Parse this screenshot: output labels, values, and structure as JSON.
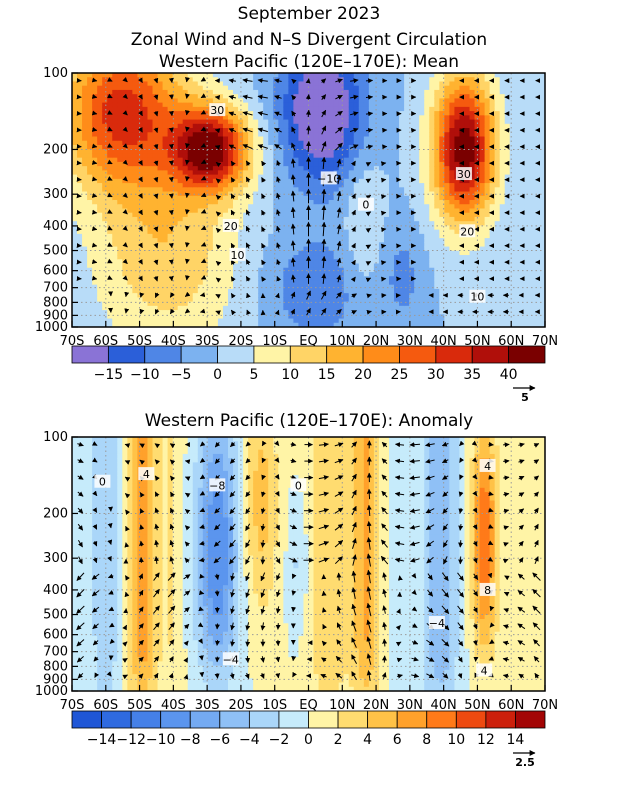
{
  "figure": {
    "title_line1": "September 2023",
    "title_line2": "Zonal Wind and N–S Divergent Circulation",
    "title_line3": "Western Pacific (120E–170E): Mean"
  },
  "chart_data": [
    {
      "type": "heatmap",
      "panel": "mean",
      "title": "Western Pacific (120E–170E): Mean",
      "x_tick_labels": [
        "70S",
        "60S",
        "50S",
        "40S",
        "30S",
        "20S",
        "10S",
        "EQ",
        "10N",
        "20N",
        "30N",
        "40N",
        "50N",
        "60N",
        "70N"
      ],
      "x_values": [
        -70,
        -60,
        -50,
        -40,
        -30,
        -20,
        -10,
        0,
        10,
        20,
        30,
        40,
        50,
        60,
        70
      ],
      "xlim": [
        -70,
        70
      ],
      "y_tick_labels": [
        "100",
        "200",
        "300",
        "400",
        "500",
        "600",
        "700",
        "800",
        "900",
        "1000"
      ],
      "y_values": [
        100,
        200,
        300,
        400,
        500,
        600,
        700,
        800,
        900,
        1000
      ],
      "ylim": [
        1000,
        100
      ],
      "y_scale": "log",
      "grid": true,
      "colorbar": {
        "labels": [
          "−15",
          "−10",
          "−5",
          "0",
          "5",
          "10",
          "15",
          "20",
          "25",
          "30",
          "35",
          "40"
        ],
        "level_values": [
          -15,
          -10,
          -5,
          0,
          5,
          10,
          15,
          20,
          25,
          30,
          35,
          40
        ],
        "colors": [
          "#8a73d6",
          "#2b5fd9",
          "#4f86e6",
          "#7cb2f0",
          "#b8dcf8",
          "#fff4a6",
          "#ffd466",
          "#ffb330",
          "#ff8c19",
          "#f55a0f",
          "#d92a0c",
          "#b00f0a",
          "#7a0000"
        ],
        "vector_reference": "5"
      },
      "contour_labels": [
        {
          "text": "30",
          "lat": -27,
          "p": 140
        },
        {
          "text": "20",
          "lat": -23,
          "p": 400
        },
        {
          "text": "10",
          "lat": -21,
          "p": 520
        },
        {
          "text": "−10",
          "lat": 6,
          "p": 260
        },
        {
          "text": "0",
          "lat": 17,
          "p": 330
        },
        {
          "text": "30",
          "lat": 46,
          "p": 250
        },
        {
          "text": "20",
          "lat": 47,
          "p": 420
        },
        {
          "text": "10",
          "lat": 50,
          "p": 760
        }
      ]
    },
    {
      "type": "heatmap",
      "panel": "anomaly",
      "title": "Western Pacific (120E–170E): Anomaly",
      "x_tick_labels": [
        "70S",
        "60S",
        "50S",
        "40S",
        "30S",
        "20S",
        "10S",
        "EQ",
        "10N",
        "20N",
        "30N",
        "40N",
        "50N",
        "60N",
        "70N"
      ],
      "x_values": [
        -70,
        -60,
        -50,
        -40,
        -30,
        -20,
        -10,
        0,
        10,
        20,
        30,
        40,
        50,
        60,
        70
      ],
      "xlim": [
        -70,
        70
      ],
      "y_tick_labels": [
        "100",
        "200",
        "300",
        "400",
        "500",
        "600",
        "700",
        "800",
        "900",
        "1000"
      ],
      "y_values": [
        100,
        200,
        300,
        400,
        500,
        600,
        700,
        800,
        900,
        1000
      ],
      "ylim": [
        1000,
        100
      ],
      "y_scale": "log",
      "grid": true,
      "colorbar": {
        "labels": [
          "−14",
          "−12",
          "−10",
          "−8",
          "−6",
          "−4",
          "−2",
          "0",
          "2",
          "4",
          "6",
          "8",
          "10",
          "12",
          "14"
        ],
        "level_values": [
          -14,
          -12,
          -10,
          -8,
          -6,
          -4,
          -2,
          0,
          2,
          4,
          6,
          8,
          10,
          12,
          14
        ],
        "colors": [
          "#1f56d6",
          "#2f6ae0",
          "#4580e8",
          "#5b95ee",
          "#74aaf2",
          "#8fc0f6",
          "#aad6f9",
          "#c6ebfb",
          "#fff4a6",
          "#ffdc70",
          "#ffc247",
          "#ffa12b",
          "#ff7a19",
          "#ee4a10",
          "#cc200b",
          "#a30505"
        ],
        "vector_reference": "2.5"
      },
      "contour_labels": [
        {
          "text": "0",
          "lat": -61,
          "p": 150
        },
        {
          "text": "4",
          "lat": -48,
          "p": 140
        },
        {
          "text": "−8",
          "lat": -27,
          "p": 155
        },
        {
          "text": "0",
          "lat": -3,
          "p": 155
        },
        {
          "text": "−4",
          "lat": -23,
          "p": 750
        },
        {
          "text": "−4",
          "lat": 38,
          "p": 540
        },
        {
          "text": "4",
          "lat": 53,
          "p": 130
        },
        {
          "text": "8",
          "lat": 53,
          "p": 400
        },
        {
          "text": "4",
          "lat": 52,
          "p": 830
        }
      ]
    }
  ]
}
